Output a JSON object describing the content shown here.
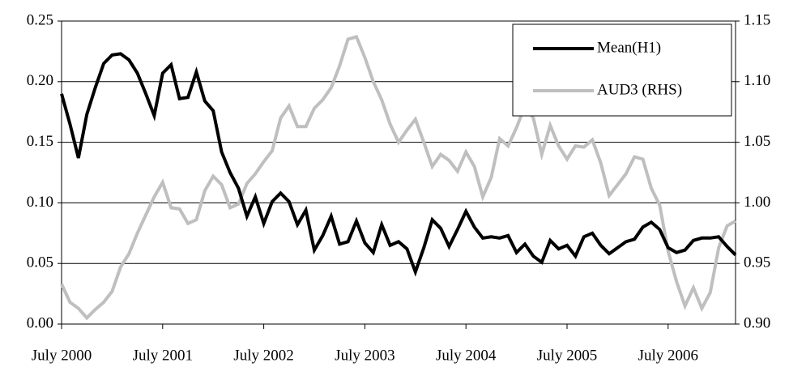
{
  "chart_data": {
    "type": "line",
    "categories": [
      "July 2000",
      null,
      null,
      null,
      null,
      null,
      null,
      null,
      null,
      null,
      null,
      null,
      "July 2001",
      null,
      null,
      null,
      null,
      null,
      null,
      null,
      null,
      null,
      null,
      null,
      "July 2002",
      null,
      null,
      null,
      null,
      null,
      null,
      null,
      null,
      null,
      null,
      null,
      "July 2003",
      null,
      null,
      null,
      null,
      null,
      null,
      null,
      null,
      null,
      null,
      null,
      "July 2004",
      null,
      null,
      null,
      null,
      null,
      null,
      null,
      null,
      null,
      null,
      null,
      "July 2005",
      null,
      null,
      null,
      null,
      null,
      null,
      null,
      null,
      null,
      null,
      null,
      "July 2006",
      null,
      null,
      null,
      null,
      null,
      null,
      null,
      null
    ],
    "series": [
      {
        "name": "Mean(H1)",
        "color": "#000000",
        "values": [
          0.19,
          0.165,
          0.137,
          0.173,
          0.195,
          0.215,
          0.222,
          0.223,
          0.218,
          0.207,
          0.19,
          0.172,
          0.207,
          0.214,
          0.186,
          0.187,
          0.208,
          0.184,
          0.176,
          0.142,
          0.125,
          0.112,
          0.089,
          0.105,
          0.083,
          0.101,
          0.108,
          0.101,
          0.082,
          0.094,
          0.061,
          0.073,
          0.089,
          0.066,
          0.068,
          0.085,
          0.067,
          0.059,
          0.082,
          0.065,
          0.068,
          0.062,
          0.043,
          0.063,
          0.086,
          0.079,
          0.064,
          0.078,
          0.093,
          0.08,
          0.071,
          0.072,
          0.071,
          0.073,
          0.059,
          0.066,
          0.056,
          0.051,
          0.069,
          0.062,
          0.065,
          0.056,
          0.072,
          0.075,
          0.065,
          0.058,
          0.063,
          0.068,
          0.07,
          0.08,
          0.084,
          0.078,
          0.063,
          0.059,
          0.061,
          0.069,
          0.071,
          0.071,
          0.072,
          0.064,
          0.057
        ]
      },
      {
        "name": "AUD3 (RHS)",
        "color": "#bfbfbf",
        "axis": "y2",
        "values": [
          0.933,
          0.918,
          0.913,
          0.905,
          0.912,
          0.918,
          0.927,
          0.947,
          0.958,
          0.975,
          0.99,
          1.005,
          1.017,
          0.996,
          0.995,
          0.983,
          0.986,
          1.01,
          1.022,
          1.015,
          0.996,
          0.999,
          1.016,
          1.024,
          1.034,
          1.043,
          1.07,
          1.08,
          1.063,
          1.063,
          1.078,
          1.085,
          1.095,
          1.113,
          1.135,
          1.137,
          1.12,
          1.1,
          1.085,
          1.065,
          1.05,
          1.06,
          1.069,
          1.05,
          1.03,
          1.04,
          1.035,
          1.026,
          1.042,
          1.03,
          1.005,
          1.021,
          1.053,
          1.047,
          1.062,
          1.08,
          1.07,
          1.04,
          1.064,
          1.047,
          1.036,
          1.047,
          1.046,
          1.052,
          1.033,
          1.006,
          1.015,
          1.024,
          1.038,
          1.036,
          1.012,
          0.998,
          0.96,
          0.935,
          0.915,
          0.93,
          0.913,
          0.926,
          0.963,
          0.981,
          0.985
        ]
      }
    ],
    "ylim": [
      0,
      0.25
    ],
    "yticks": [
      {
        "value": 0,
        "label": "0.00"
      },
      {
        "value": 0.05,
        "label": "0.05"
      },
      {
        "value": 0.1,
        "label": "0.10"
      },
      {
        "value": 0.15,
        "label": "0.15"
      },
      {
        "value": 0.2,
        "label": "0.20"
      },
      {
        "value": 0.25,
        "label": "0.25"
      }
    ],
    "y2lim": [
      0.9,
      1.15
    ],
    "y2ticks": [
      {
        "value": 0.9,
        "label": "0.90"
      },
      {
        "value": 0.95,
        "label": "0.95"
      },
      {
        "value": 1.0,
        "label": "1.00"
      },
      {
        "value": 1.05,
        "label": "1.05"
      },
      {
        "value": 1.1,
        "label": "1.10"
      },
      {
        "value": 1.15,
        "label": "1.15"
      }
    ],
    "grid": true,
    "legend": "upper right"
  }
}
